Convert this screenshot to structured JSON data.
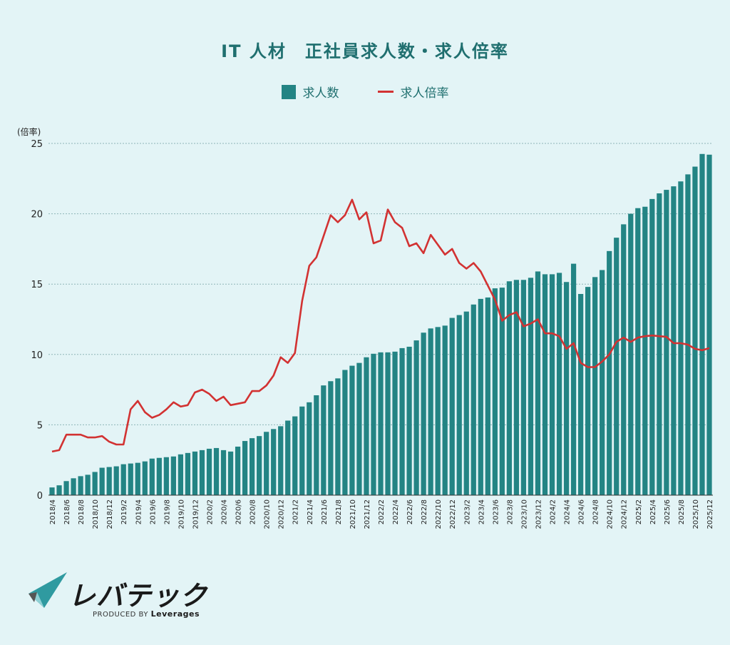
{
  "title": "IT 人材　正社員求人数・求人倍率",
  "legend": {
    "bar_label": "求人数",
    "line_label": "求人倍率"
  },
  "y_unit": "(倍率)",
  "logo": {
    "name": "レバテック",
    "produced_by": "PRODUCED BY",
    "company": "Leverages"
  },
  "colors": {
    "background": "#e3f4f6",
    "bar": "#238484",
    "line": "#d23232",
    "title": "#1f6f6f"
  },
  "chart_data": {
    "type": "bar",
    "ylim": [
      0,
      25
    ],
    "y_ticks": [
      0,
      5,
      10,
      15,
      20,
      25
    ],
    "grid": true,
    "legend_position": "top-center",
    "x": [
      "2018/4",
      "2018/5",
      "2018/6",
      "2018/7",
      "2018/8",
      "2018/9",
      "2018/10",
      "2018/11",
      "2018/12",
      "2019/1",
      "2019/2",
      "2019/3",
      "2019/4",
      "2019/5",
      "2019/6",
      "2019/7",
      "2019/8",
      "2019/9",
      "2019/10",
      "2019/11",
      "2019/12",
      "2020/1",
      "2020/2",
      "2020/3",
      "2020/4",
      "2020/5",
      "2020/6",
      "2020/7",
      "2020/8",
      "2020/9",
      "2020/10",
      "2020/11",
      "2020/12",
      "2021/1",
      "2021/2",
      "2021/3",
      "2021/4",
      "2021/5",
      "2021/6",
      "2021/7",
      "2021/8",
      "2021/9",
      "2021/10",
      "2021/11",
      "2021/12",
      "2022/1",
      "2022/2",
      "2022/3",
      "2022/4",
      "2022/5",
      "2022/6",
      "2022/7",
      "2022/8",
      "2022/9",
      "2022/10",
      "2022/11",
      "2022/12",
      "2023/1",
      "2023/2",
      "2023/3",
      "2023/4",
      "2023/5",
      "2023/6",
      "2023/7",
      "2023/8",
      "2023/9",
      "2023/10",
      "2023/11",
      "2023/12",
      "2024/1",
      "2024/2",
      "2024/3",
      "2024/4",
      "2024/5",
      "2024/6",
      "2024/7",
      "2024/8",
      "2024/9",
      "2024/10",
      "2024/11",
      "2024/12",
      "2025/1",
      "2025/2",
      "2025/3",
      "2025/4",
      "2025/5",
      "2025/6",
      "2025/7",
      "2025/8",
      "2025/9",
      "2025/10",
      "2025/11",
      "2025/12"
    ],
    "x_tick_labels": [
      "2018/4",
      "2018/6",
      "2018/8",
      "2018/10",
      "2018/12",
      "2019/2",
      "2019/4",
      "2019/6",
      "2019/8",
      "2019/10",
      "2019/12",
      "2020/2",
      "2020/4",
      "2020/6",
      "2020/8",
      "2020/10",
      "2020/12",
      "2021/2",
      "2021/4",
      "2021/6",
      "2021/8",
      "2021/10",
      "2021/12",
      "2022/2",
      "2022/4",
      "2022/6",
      "2022/8",
      "2022/10",
      "2022/12",
      "2023/2",
      "2023/4",
      "2023/6",
      "2023/8",
      "2023/10",
      "2023/12",
      "2024/2",
      "2024/4",
      "2024/6",
      "2024/8",
      "2024/10",
      "2024/12",
      "2025/2",
      "2025/4",
      "2025/6",
      "2025/8",
      "2025/10",
      "2025/12"
    ],
    "series": [
      {
        "name": "求人数",
        "type": "bar",
        "values": [
          0.55,
          0.7,
          1.0,
          1.2,
          1.35,
          1.45,
          1.65,
          1.95,
          2.0,
          2.05,
          2.2,
          2.25,
          2.3,
          2.4,
          2.6,
          2.65,
          2.7,
          2.75,
          2.9,
          3.0,
          3.1,
          3.2,
          3.3,
          3.35,
          3.2,
          3.1,
          3.45,
          3.85,
          4.05,
          4.2,
          4.5,
          4.7,
          4.9,
          5.3,
          5.6,
          6.3,
          6.6,
          7.1,
          7.8,
          8.1,
          8.3,
          8.9,
          9.2,
          9.4,
          9.8,
          10.05,
          10.15,
          10.15,
          10.2,
          10.45,
          10.55,
          11.0,
          11.55,
          11.85,
          11.95,
          12.05,
          12.6,
          12.8,
          13.05,
          13.55,
          13.95,
          14.05,
          14.7,
          14.75,
          15.2,
          15.3,
          15.3,
          15.45,
          15.9,
          15.7,
          15.7,
          15.8,
          15.15,
          16.45,
          14.3,
          14.8,
          15.5,
          16.0,
          17.35,
          18.3,
          19.25,
          20.0,
          20.4,
          20.5,
          21.05,
          21.45,
          21.7,
          21.95,
          22.3,
          22.8,
          23.35,
          24.25,
          24.2
        ]
      },
      {
        "name": "求人倍率",
        "type": "line",
        "values": [
          3.1,
          3.2,
          4.3,
          4.3,
          4.3,
          4.1,
          4.1,
          4.2,
          3.8,
          3.6,
          3.6,
          6.1,
          6.7,
          5.9,
          5.5,
          5.7,
          6.1,
          6.6,
          6.3,
          6.4,
          7.3,
          7.5,
          7.2,
          6.7,
          7.0,
          6.4,
          6.5,
          6.6,
          7.4,
          7.4,
          7.8,
          8.5,
          9.8,
          9.4,
          10.1,
          13.8,
          16.3,
          16.9,
          18.4,
          19.9,
          19.4,
          19.9,
          21.0,
          19.6,
          20.1,
          17.9,
          18.1,
          20.3,
          19.4,
          19.0,
          17.7,
          17.9,
          17.2,
          18.5,
          17.8,
          17.1,
          17.5,
          16.5,
          16.1,
          16.5,
          15.9,
          14.9,
          13.9,
          12.4,
          12.8,
          13.0,
          12.0,
          12.2,
          12.5,
          11.5,
          11.5,
          11.3,
          10.4,
          10.8,
          9.4,
          9.1,
          9.1,
          9.5,
          10.0,
          10.9,
          11.2,
          10.9,
          11.2,
          11.3,
          11.35,
          11.3,
          11.25,
          10.8,
          10.8,
          10.7,
          10.4,
          10.3,
          10.45
        ]
      }
    ]
  }
}
